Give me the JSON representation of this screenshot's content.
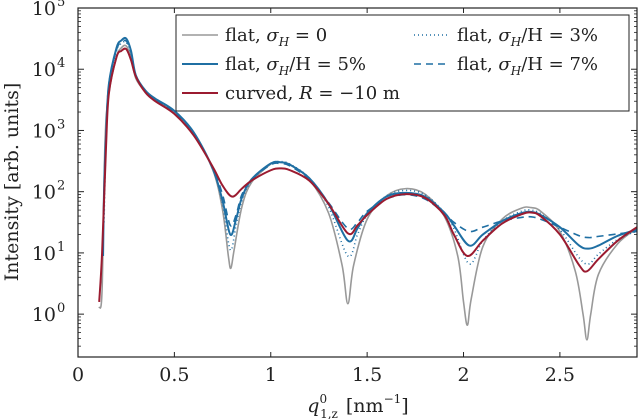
{
  "chart_data": {
    "type": "line",
    "xlabel_main": "q",
    "xlabel_sup": "0",
    "xlabel_sub": "1,z",
    "xlabel_units": "[nm",
    "xlabel_units_sup": "−1",
    "xlabel_units_close": "]",
    "ylabel": "Intensity [arb. units]",
    "xlim": [
      0,
      2.9
    ],
    "ylim_log10": [
      -0.7,
      5
    ],
    "y_scale": "log",
    "x_ticks": [
      {
        "v": 0,
        "label": "0"
      },
      {
        "v": 0.5,
        "label": "0.5"
      },
      {
        "v": 1,
        "label": "1"
      },
      {
        "v": 1.5,
        "label": "1.5"
      },
      {
        "v": 2,
        "label": "2"
      },
      {
        "v": 2.5,
        "label": "2.5"
      }
    ],
    "y_ticks": [
      {
        "e": 0,
        "base": "10",
        "sup": "0"
      },
      {
        "e": 1,
        "base": "10",
        "sup": "1"
      },
      {
        "e": 2,
        "base": "10",
        "sup": "2"
      },
      {
        "e": 3,
        "base": "10",
        "sup": "3"
      },
      {
        "e": 4,
        "base": "10",
        "sup": "4"
      },
      {
        "e": 5,
        "base": "10",
        "sup": "5"
      }
    ],
    "legend_position": "top-right",
    "series": [
      {
        "name": "flat, σ_H = 0",
        "label_parts": [
          "flat, ",
          "σ",
          "H",
          " = 0"
        ],
        "color": "#999999",
        "dash": "",
        "width": 1.6,
        "points": [
          [
            0.11,
            0.1
          ],
          [
            0.125,
            0.4
          ],
          [
            0.14,
            2.8
          ],
          [
            0.16,
            3.6
          ],
          [
            0.2,
            4.2
          ],
          [
            0.225,
            4.35
          ],
          [
            0.25,
            4.38
          ],
          [
            0.275,
            4.2
          ],
          [
            0.3,
            3.85
          ],
          [
            0.35,
            3.63
          ],
          [
            0.4,
            3.5
          ],
          [
            0.5,
            3.3
          ],
          [
            0.6,
            2.95
          ],
          [
            0.7,
            2.35
          ],
          [
            0.75,
            1.7
          ],
          [
            0.78,
            0.95
          ],
          [
            0.793,
            0.75
          ],
          [
            0.81,
            1.05
          ],
          [
            0.85,
            1.75
          ],
          [
            0.9,
            2.15
          ],
          [
            1.0,
            2.45
          ],
          [
            1.05,
            2.48
          ],
          [
            1.1,
            2.44
          ],
          [
            1.2,
            2.2
          ],
          [
            1.3,
            1.65
          ],
          [
            1.37,
            0.8
          ],
          [
            1.4,
            0.17
          ],
          [
            1.43,
            0.8
          ],
          [
            1.5,
            1.55
          ],
          [
            1.6,
            1.93
          ],
          [
            1.7,
            2.05
          ],
          [
            1.8,
            1.96
          ],
          [
            1.9,
            1.6
          ],
          [
            1.97,
            0.95
          ],
          [
            2.0,
            0.2
          ],
          [
            2.02,
            -0.18
          ],
          [
            2.04,
            0.25
          ],
          [
            2.1,
            1.1
          ],
          [
            2.2,
            1.55
          ],
          [
            2.3,
            1.73
          ],
          [
            2.35,
            1.74
          ],
          [
            2.4,
            1.68
          ],
          [
            2.5,
            1.35
          ],
          [
            2.58,
            0.7
          ],
          [
            2.62,
            0.0
          ],
          [
            2.64,
            -0.42
          ],
          [
            2.66,
            0.0
          ],
          [
            2.7,
            0.65
          ],
          [
            2.8,
            1.15
          ],
          [
            2.9,
            1.4
          ]
        ]
      },
      {
        "name": "flat, σ_H/H = 5%",
        "label_parts": [
          "flat, ",
          "σ",
          "H",
          "/H = 5%"
        ],
        "color": "#1f6fa3",
        "dash": "",
        "width": 2,
        "points": [
          [
            0.13,
            0.95
          ],
          [
            0.135,
            2.0
          ],
          [
            0.145,
            2.9
          ],
          [
            0.16,
            3.75
          ],
          [
            0.2,
            4.35
          ],
          [
            0.225,
            4.47
          ],
          [
            0.25,
            4.5
          ],
          [
            0.275,
            4.3
          ],
          [
            0.3,
            3.9
          ],
          [
            0.35,
            3.65
          ],
          [
            0.4,
            3.52
          ],
          [
            0.5,
            3.32
          ],
          [
            0.6,
            2.97
          ],
          [
            0.7,
            2.37
          ],
          [
            0.75,
            1.85
          ],
          [
            0.79,
            1.3
          ],
          [
            0.82,
            1.55
          ],
          [
            0.85,
            1.9
          ],
          [
            0.9,
            2.2
          ],
          [
            1.0,
            2.46
          ],
          [
            1.05,
            2.48
          ],
          [
            1.1,
            2.44
          ],
          [
            1.2,
            2.22
          ],
          [
            1.3,
            1.8
          ],
          [
            1.4,
            1.2
          ],
          [
            1.45,
            1.4
          ],
          [
            1.5,
            1.65
          ],
          [
            1.6,
            1.92
          ],
          [
            1.7,
            1.98
          ],
          [
            1.8,
            1.92
          ],
          [
            1.9,
            1.66
          ],
          [
            1.95,
            1.45
          ],
          [
            2.03,
            1.12
          ],
          [
            2.1,
            1.3
          ],
          [
            2.2,
            1.52
          ],
          [
            2.3,
            1.65
          ],
          [
            2.35,
            1.67
          ],
          [
            2.4,
            1.62
          ],
          [
            2.5,
            1.42
          ],
          [
            2.6,
            1.12
          ],
          [
            2.65,
            1.07
          ],
          [
            2.7,
            1.12
          ],
          [
            2.8,
            1.28
          ],
          [
            2.9,
            1.38
          ]
        ]
      },
      {
        "name": "curved, R = −10 m",
        "label_parts": [
          "curved, ",
          "R",
          "",
          " = −10 m"
        ],
        "color": "#9b1b30",
        "dash": "",
        "width": 2,
        "points": [
          [
            0.11,
            0.2
          ],
          [
            0.125,
            1.0
          ],
          [
            0.145,
            2.7
          ],
          [
            0.16,
            3.6
          ],
          [
            0.2,
            4.2
          ],
          [
            0.225,
            4.3
          ],
          [
            0.25,
            4.33
          ],
          [
            0.275,
            4.15
          ],
          [
            0.3,
            3.88
          ],
          [
            0.35,
            3.62
          ],
          [
            0.4,
            3.48
          ],
          [
            0.5,
            3.27
          ],
          [
            0.6,
            2.92
          ],
          [
            0.7,
            2.4
          ],
          [
            0.75,
            2.1
          ],
          [
            0.8,
            1.92
          ],
          [
            0.85,
            2.05
          ],
          [
            0.9,
            2.18
          ],
          [
            1.0,
            2.35
          ],
          [
            1.05,
            2.38
          ],
          [
            1.1,
            2.35
          ],
          [
            1.2,
            2.18
          ],
          [
            1.3,
            1.8
          ],
          [
            1.4,
            1.32
          ],
          [
            1.45,
            1.45
          ],
          [
            1.5,
            1.62
          ],
          [
            1.6,
            1.88
          ],
          [
            1.7,
            1.96
          ],
          [
            1.8,
            1.9
          ],
          [
            1.9,
            1.62
          ],
          [
            1.95,
            1.3
          ],
          [
            2.02,
            0.95
          ],
          [
            2.1,
            1.2
          ],
          [
            2.2,
            1.48
          ],
          [
            2.3,
            1.63
          ],
          [
            2.35,
            1.66
          ],
          [
            2.4,
            1.6
          ],
          [
            2.5,
            1.3
          ],
          [
            2.6,
            0.8
          ],
          [
            2.64,
            0.7
          ],
          [
            2.7,
            0.9
          ],
          [
            2.8,
            1.2
          ],
          [
            2.9,
            1.42
          ]
        ]
      },
      {
        "name": "flat, σ_H/H = 3%",
        "label_parts": [
          "flat, ",
          "σ",
          "H",
          "/H = 3%"
        ],
        "color": "#1f6fa3",
        "dash": "1,3",
        "width": 1.6,
        "points": [
          [
            0.135,
            1.5
          ],
          [
            0.145,
            2.8
          ],
          [
            0.16,
            3.7
          ],
          [
            0.2,
            4.3
          ],
          [
            0.225,
            4.42
          ],
          [
            0.25,
            4.44
          ],
          [
            0.275,
            4.25
          ],
          [
            0.3,
            3.88
          ],
          [
            0.35,
            3.64
          ],
          [
            0.4,
            3.51
          ],
          [
            0.5,
            3.31
          ],
          [
            0.6,
            2.96
          ],
          [
            0.7,
            2.36
          ],
          [
            0.75,
            1.8
          ],
          [
            0.79,
            1.05
          ],
          [
            0.82,
            1.45
          ],
          [
            0.85,
            1.85
          ],
          [
            0.9,
            2.18
          ],
          [
            1.0,
            2.46
          ],
          [
            1.05,
            2.49
          ],
          [
            1.1,
            2.45
          ],
          [
            1.2,
            2.22
          ],
          [
            1.3,
            1.75
          ],
          [
            1.4,
            0.95
          ],
          [
            1.45,
            1.3
          ],
          [
            1.5,
            1.62
          ],
          [
            1.6,
            1.93
          ],
          [
            1.7,
            2.02
          ],
          [
            1.8,
            1.95
          ],
          [
            1.9,
            1.66
          ],
          [
            1.95,
            1.4
          ],
          [
            2.03,
            0.82
          ],
          [
            2.1,
            1.2
          ],
          [
            2.2,
            1.52
          ],
          [
            2.3,
            1.68
          ],
          [
            2.35,
            1.7
          ],
          [
            2.4,
            1.64
          ],
          [
            2.5,
            1.38
          ],
          [
            2.6,
            0.92
          ],
          [
            2.65,
            0.82
          ],
          [
            2.7,
            0.98
          ],
          [
            2.8,
            1.22
          ],
          [
            2.9,
            1.36
          ]
        ]
      },
      {
        "name": "flat, σ_H/H = 7%",
        "label_parts": [
          "flat, ",
          "σ",
          "H",
          "/H = 7%"
        ],
        "color": "#1f6fa3",
        "dash": "7,5",
        "width": 1.6,
        "points": [
          [
            0.13,
            1.2
          ],
          [
            0.145,
            2.9
          ],
          [
            0.16,
            3.75
          ],
          [
            0.2,
            4.32
          ],
          [
            0.225,
            4.44
          ],
          [
            0.25,
            4.46
          ],
          [
            0.275,
            4.28
          ],
          [
            0.3,
            3.9
          ],
          [
            0.35,
            3.64
          ],
          [
            0.4,
            3.51
          ],
          [
            0.5,
            3.3
          ],
          [
            0.6,
            2.95
          ],
          [
            0.7,
            2.38
          ],
          [
            0.75,
            1.95
          ],
          [
            0.79,
            1.45
          ],
          [
            0.82,
            1.62
          ],
          [
            0.85,
            1.95
          ],
          [
            0.9,
            2.2
          ],
          [
            1.0,
            2.44
          ],
          [
            1.05,
            2.46
          ],
          [
            1.1,
            2.42
          ],
          [
            1.2,
            2.2
          ],
          [
            1.3,
            1.82
          ],
          [
            1.4,
            1.4
          ],
          [
            1.45,
            1.5
          ],
          [
            1.5,
            1.68
          ],
          [
            1.6,
            1.88
          ],
          [
            1.7,
            1.95
          ],
          [
            1.8,
            1.88
          ],
          [
            1.9,
            1.65
          ],
          [
            1.95,
            1.5
          ],
          [
            2.03,
            1.35
          ],
          [
            2.1,
            1.42
          ],
          [
            2.2,
            1.52
          ],
          [
            2.3,
            1.58
          ],
          [
            2.35,
            1.59
          ],
          [
            2.4,
            1.55
          ],
          [
            2.5,
            1.42
          ],
          [
            2.6,
            1.28
          ],
          [
            2.65,
            1.25
          ],
          [
            2.7,
            1.27
          ],
          [
            2.8,
            1.31
          ],
          [
            2.9,
            1.35
          ]
        ]
      }
    ],
    "legend_layout": [
      {
        "series": 0,
        "col": 0,
        "row": 0
      },
      {
        "series": 3,
        "col": 1,
        "row": 0
      },
      {
        "series": 1,
        "col": 0,
        "row": 1
      },
      {
        "series": 4,
        "col": 1,
        "row": 1
      },
      {
        "series": 2,
        "col": 0,
        "row": 2
      }
    ]
  }
}
